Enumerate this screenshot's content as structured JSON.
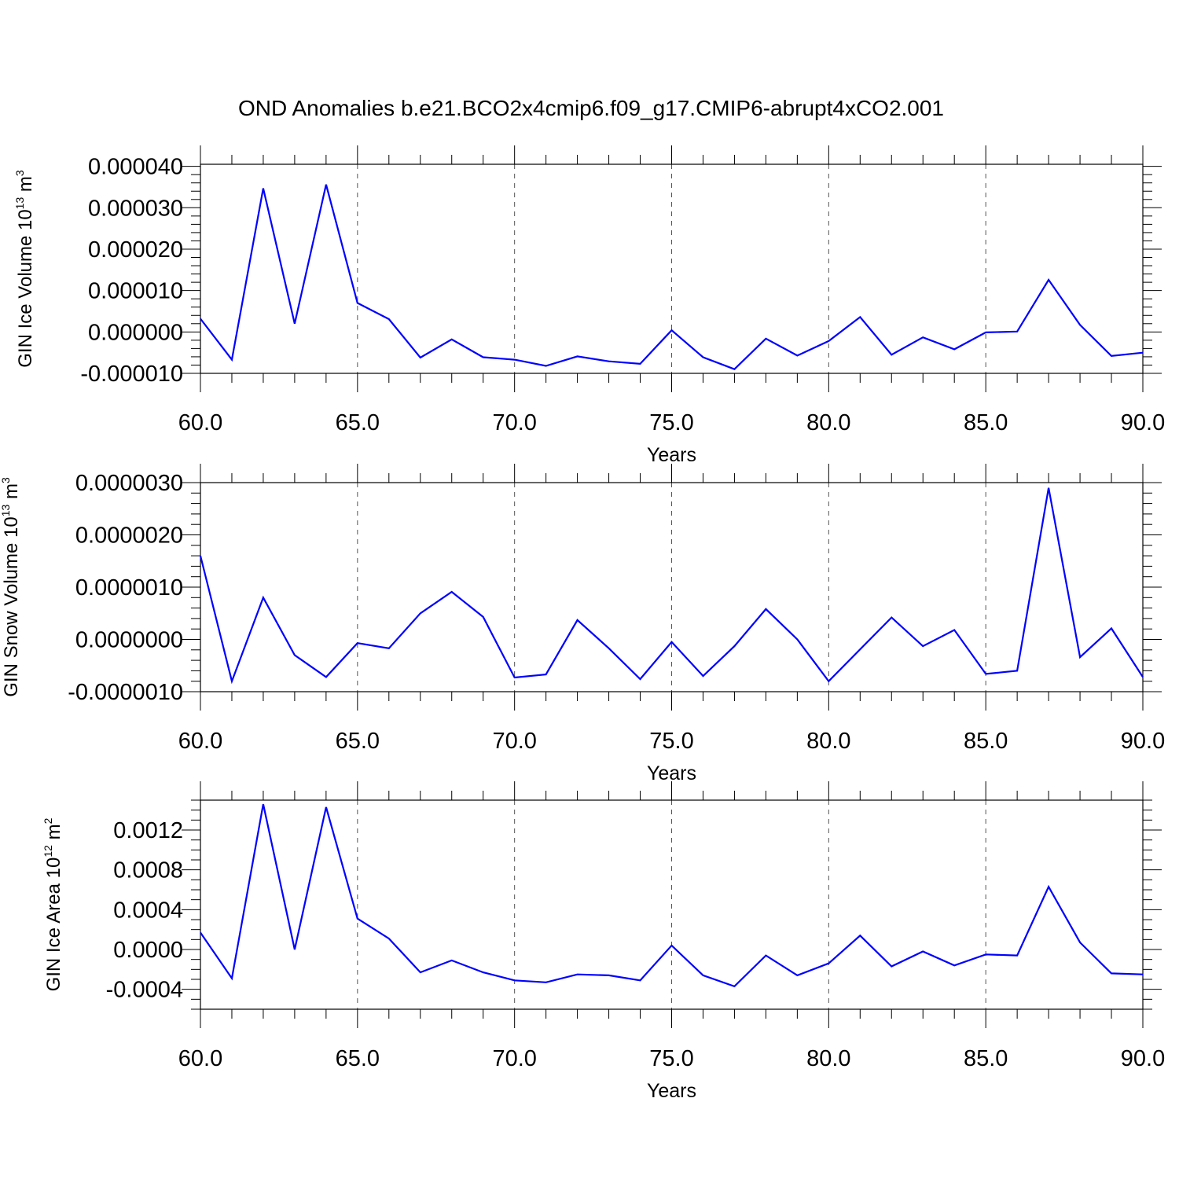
{
  "title": "OND Anomalies b.e21.BCO2x4cmip6.f09_g17.CMIP6-abrupt4xCO2.001",
  "colors": {
    "series": "#0000ff",
    "axis": "#000000",
    "grid": "#555555"
  },
  "chart_data": [
    {
      "type": "line",
      "xlabel": "Years",
      "ylabel": {
        "main": "GIN Ice Volume 10",
        "sup": "13",
        "unit": " m",
        "unit_sup": "3"
      },
      "xlim": [
        60,
        90
      ],
      "ylim": [
        -1e-05,
        4.05e-05
      ],
      "grid": "vertical-dashed",
      "xticks": [
        {
          "value": 60,
          "label": "60.0"
        },
        {
          "value": 65,
          "label": "65.0"
        },
        {
          "value": 70,
          "label": "70.0"
        },
        {
          "value": 75,
          "label": "75.0"
        },
        {
          "value": 80,
          "label": "80.0"
        },
        {
          "value": 85,
          "label": "85.0"
        },
        {
          "value": 90,
          "label": "90.0"
        }
      ],
      "yticks": [
        {
          "value": -1e-05,
          "label": "-0.000010"
        },
        {
          "value": 0.0,
          "label": "0.000000"
        },
        {
          "value": 1e-05,
          "label": "0.000010"
        },
        {
          "value": 2e-05,
          "label": "0.000020"
        },
        {
          "value": 3e-05,
          "label": "0.000030"
        },
        {
          "value": 4e-05,
          "label": "0.000040"
        }
      ],
      "y_minor_step": 2e-06,
      "x": [
        60,
        61,
        62,
        63,
        64,
        65,
        66,
        67,
        68,
        69,
        70,
        71,
        72,
        73,
        74,
        75,
        76,
        77,
        78,
        79,
        80,
        81,
        82,
        83,
        84,
        85,
        86,
        87,
        88,
        89,
        90
      ],
      "values": [
        3.2e-06,
        -6.7e-06,
        3.47e-05,
        2e-06,
        3.56e-05,
        7e-06,
        3.1e-06,
        -6.2e-06,
        -1.8e-06,
        -6.1e-06,
        -6.7e-06,
        -8.2e-06,
        -5.9e-06,
        -7.1e-06,
        -7.7e-06,
        4e-07,
        -6.1e-06,
        -9e-06,
        -1.6e-06,
        -5.7e-06,
        -2.2e-06,
        3.6e-06,
        -5.5e-06,
        -1.3e-06,
        -4.2e-06,
        -1e-07,
        1e-07,
        1.26e-05,
        1.7e-06,
        -5.8e-06,
        -5e-06
      ]
    },
    {
      "type": "line",
      "xlabel": "Years",
      "ylabel": {
        "main": "GIN Snow Volume 10",
        "sup": "13",
        "unit": " m",
        "unit_sup": "3"
      },
      "xlim": [
        60,
        90
      ],
      "ylim": [
        -1e-06,
        3e-06
      ],
      "grid": "vertical-dashed",
      "xticks": [
        {
          "value": 60,
          "label": "60.0"
        },
        {
          "value": 65,
          "label": "65.0"
        },
        {
          "value": 70,
          "label": "70.0"
        },
        {
          "value": 75,
          "label": "75.0"
        },
        {
          "value": 80,
          "label": "80.0"
        },
        {
          "value": 85,
          "label": "85.0"
        },
        {
          "value": 90,
          "label": "90.0"
        }
      ],
      "yticks": [
        {
          "value": -1e-06,
          "label": "-0.0000010"
        },
        {
          "value": 0.0,
          "label": "0.0000000"
        },
        {
          "value": 1e-06,
          "label": "0.0000010"
        },
        {
          "value": 2e-06,
          "label": "0.0000020"
        },
        {
          "value": 3e-06,
          "label": "0.0000030"
        }
      ],
      "y_minor_step": 2e-07,
      "x": [
        60,
        61,
        62,
        63,
        64,
        65,
        66,
        67,
        68,
        69,
        70,
        71,
        72,
        73,
        74,
        75,
        76,
        77,
        78,
        79,
        80,
        81,
        82,
        83,
        84,
        85,
        86,
        87,
        88,
        89,
        90
      ],
      "values": [
        1.6e-06,
        -8e-07,
        8e-07,
        -3e-07,
        -7.2e-07,
        -7e-08,
        -1.7e-07,
        5e-07,
        9.1e-07,
        4.3e-07,
        -7.3e-07,
        -6.7e-07,
        3.7e-07,
        -1.7e-07,
        -7.6e-07,
        -5e-08,
        -7e-07,
        -1.3e-07,
        5.8e-07,
        0.0,
        -8e-07,
        -1.9e-07,
        4.2e-07,
        -1.3e-07,
        1.8e-07,
        -6.6e-07,
        -6e-07,
        2.9e-06,
        -3.4e-07,
        2.1e-07,
        -7.2e-07
      ]
    },
    {
      "type": "line",
      "xlabel": "Years",
      "ylabel": {
        "main": "GIN Ice Area 10",
        "sup": "12",
        "unit": " m",
        "unit_sup": "2"
      },
      "xlim": [
        60,
        90
      ],
      "ylim": [
        -0.0006,
        0.0015
      ],
      "grid": "vertical-dashed",
      "xticks": [
        {
          "value": 60,
          "label": "60.0"
        },
        {
          "value": 65,
          "label": "65.0"
        },
        {
          "value": 70,
          "label": "70.0"
        },
        {
          "value": 75,
          "label": "75.0"
        },
        {
          "value": 80,
          "label": "80.0"
        },
        {
          "value": 85,
          "label": "85.0"
        },
        {
          "value": 90,
          "label": "90.0"
        }
      ],
      "yticks": [
        {
          "value": -0.0004,
          "label": "-0.0004"
        },
        {
          "value": 0.0,
          "label": "0.0000"
        },
        {
          "value": 0.0004,
          "label": "0.0004"
        },
        {
          "value": 0.0008,
          "label": "0.0008"
        },
        {
          "value": 0.0012,
          "label": "0.0012"
        }
      ],
      "y_minor_step": 0.0001,
      "x": [
        60,
        61,
        62,
        63,
        64,
        65,
        66,
        67,
        68,
        69,
        70,
        71,
        72,
        73,
        74,
        75,
        76,
        77,
        78,
        79,
        80,
        81,
        82,
        83,
        84,
        85,
        86,
        87,
        88,
        89,
        90
      ],
      "values": [
        0.00017,
        -0.00029,
        0.00146,
        0.0,
        0.00143,
        0.00031,
        0.00011,
        -0.00023,
        -0.00011,
        -0.00023,
        -0.00031,
        -0.00033,
        -0.00025,
        -0.00026,
        -0.00031,
        4e-05,
        -0.00026,
        -0.00037,
        -6e-05,
        -0.00026,
        -0.00014,
        0.00014,
        -0.00017,
        -2e-05,
        -0.00016,
        -5e-05,
        -6e-05,
        0.00063,
        7e-05,
        -0.00024,
        -0.00025
      ]
    }
  ]
}
